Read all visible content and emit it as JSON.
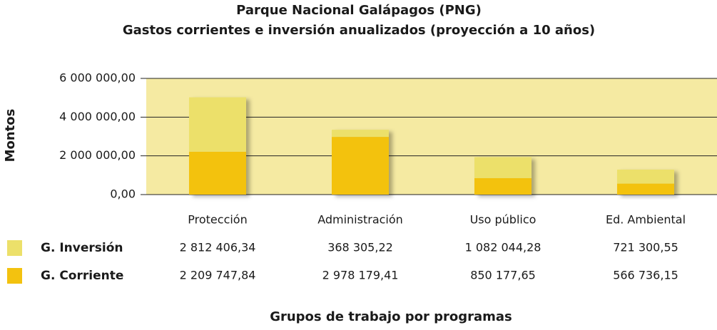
{
  "chart_data": {
    "type": "stacked_bar",
    "title": "Parque Nacional Galápagos (PNG)",
    "subtitle": "Gastos corrientes e inversión anualizados (proyección a 10 años)",
    "y_label": "Montos",
    "x_label": "Grupos de trabajo por programas",
    "categories": [
      "Protección",
      "Administración",
      "Uso público",
      "Ed. Ambiental"
    ],
    "series": [
      {
        "name": "G. Inversión",
        "color": "#ece06a",
        "values": [
          2812406.34,
          368305.22,
          1082044.28,
          721300.55
        ],
        "value_labels": [
          "2 812 406,34",
          "368 305,22",
          "1 082 044,28",
          "721 300,55"
        ]
      },
      {
        "name": "G. Corriente",
        "color": "#f3c20f",
        "values": [
          2209747.84,
          2978179.41,
          850177.65,
          566736.15
        ],
        "value_labels": [
          "2 209 747,84",
          "2 978 179,41",
          "850 177,65",
          "566 736,15"
        ]
      }
    ],
    "ylim": [
      0,
      6000000
    ],
    "yticks": [
      {
        "value": 0,
        "label": "0,00"
      },
      {
        "value": 2000000,
        "label": "2 000 000,00"
      },
      {
        "value": 4000000,
        "label": "4 000 000,00"
      },
      {
        "value": 6000000,
        "label": "6 000 000,00"
      }
    ],
    "grid": true,
    "plot_background": "#f5eaa2"
  }
}
